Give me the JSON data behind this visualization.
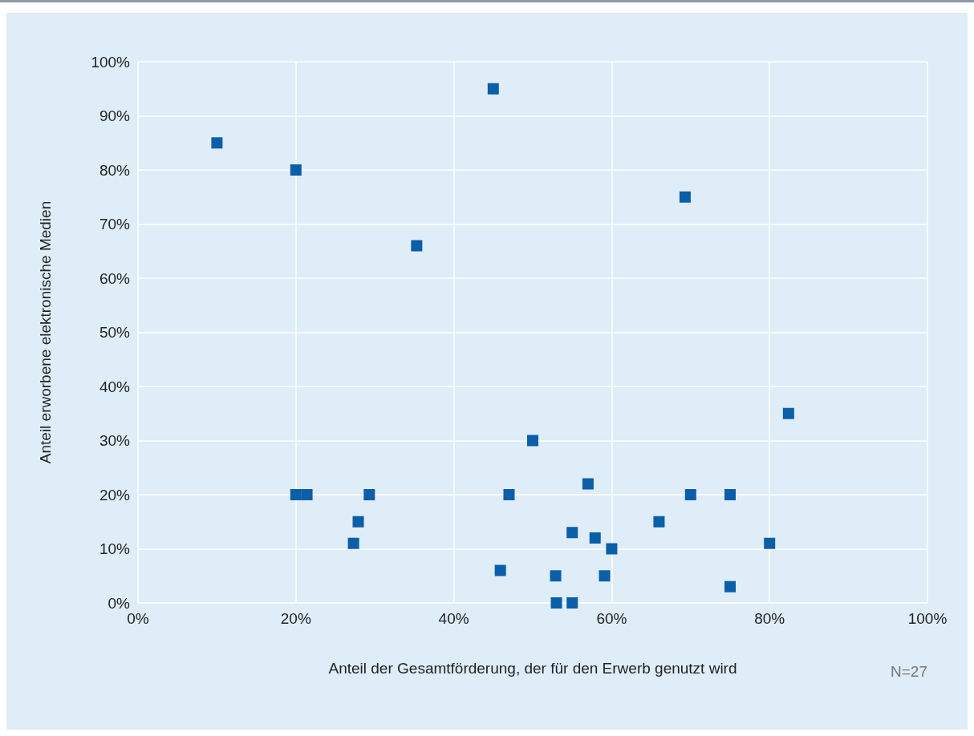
{
  "chart_data": {
    "type": "scatter",
    "xlabel": "Anteil der Gesamtförderung, der für den Erwerb genutzt wird",
    "ylabel": "Anteil erworbene elektronische Medien",
    "annotations": [
      "N=27"
    ],
    "x": [
      10,
      20,
      45,
      35.3,
      69.3,
      82.4,
      50,
      20,
      21.4,
      29.3,
      27.9,
      27.3,
      47,
      57,
      55,
      57.9,
      60,
      45.9,
      52.9,
      59.1,
      53,
      55,
      66,
      70,
      75,
      80,
      75
    ],
    "values": [
      85,
      80,
      95,
      66,
      75,
      35,
      30,
      20,
      20,
      20,
      15,
      11,
      20,
      22,
      13,
      12,
      10,
      6,
      5,
      5,
      0,
      0,
      15,
      20,
      20,
      11,
      3
    ],
    "color": "#0b5ea8",
    "marker": "square",
    "grid": true,
    "xlim": [
      0,
      100
    ],
    "xticks": [
      {
        "value": 0,
        "label": "0%"
      },
      {
        "value": 20,
        "label": "20%"
      },
      {
        "value": 40,
        "label": "40%"
      },
      {
        "value": 60,
        "label": "60%"
      },
      {
        "value": 80,
        "label": "80%"
      },
      {
        "value": 100,
        "label": "100%"
      }
    ],
    "ylim": [
      0,
      100
    ],
    "yticks": [
      {
        "value": 0,
        "label": "0%"
      },
      {
        "value": 10,
        "label": "10%"
      },
      {
        "value": 20,
        "label": "20%"
      },
      {
        "value": 30,
        "label": "30%"
      },
      {
        "value": 40,
        "label": "40%"
      },
      {
        "value": 50,
        "label": "50%"
      },
      {
        "value": 60,
        "label": "60%"
      },
      {
        "value": 70,
        "label": "70%"
      },
      {
        "value": 80,
        "label": "80%"
      },
      {
        "value": 90,
        "label": "90%"
      },
      {
        "value": 100,
        "label": "100%"
      }
    ]
  }
}
